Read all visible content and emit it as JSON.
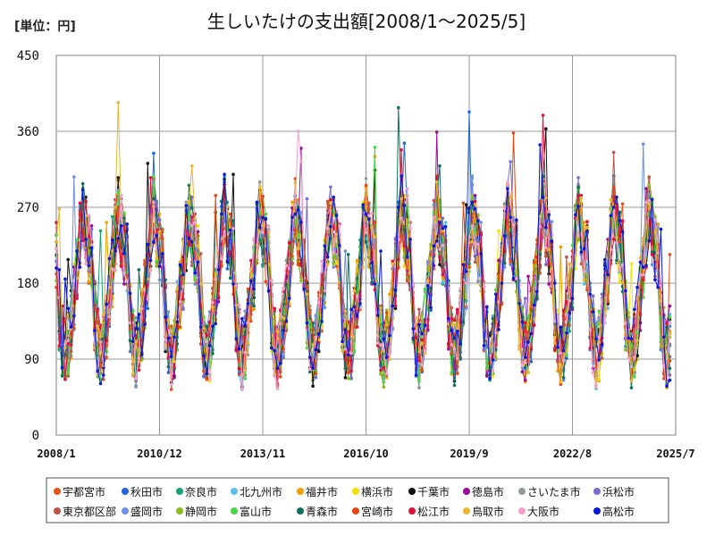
{
  "unit_label": "[単位：円]",
  "chart_data": {
    "type": "line",
    "title": "生しいたけの支出額[2008/1～2025/5]",
    "xlabel": "",
    "ylabel": "",
    "ylim": [
      0,
      450
    ],
    "yticks": [
      0,
      90,
      180,
      270,
      360,
      450
    ],
    "x_range": [
      "2008/1",
      "2025/7"
    ],
    "x_ticks": [
      "2008/1",
      "2010/12",
      "2013/11",
      "2016/10",
      "2019/9",
      "2022/8",
      "2025/7"
    ],
    "grid": true,
    "legend_position": "bottom",
    "series": [
      {
        "name": "宇都宮市",
        "color": "#e8501c",
        "seed": 11,
        "values": []
      },
      {
        "name": "秋田市",
        "color": "#1f67e0",
        "seed": 23,
        "values": []
      },
      {
        "name": "奈良市",
        "color": "#17a277",
        "seed": 37,
        "values": []
      },
      {
        "name": "北九州市",
        "color": "#55bde8",
        "seed": 41,
        "values": []
      },
      {
        "name": "福井市",
        "color": "#f0a000",
        "seed": 53,
        "values": []
      },
      {
        "name": "横浜市",
        "color": "#f5e000",
        "seed": 61,
        "values": []
      },
      {
        "name": "千葉市",
        "color": "#111111",
        "seed": 71,
        "values": []
      },
      {
        "name": "徳島市",
        "color": "#9a0a9e",
        "seed": 83,
        "values": []
      },
      {
        "name": "さいたま市",
        "color": "#909aa0",
        "seed": 97,
        "values": []
      },
      {
        "name": "浜松市",
        "color": "#7a6ad0",
        "seed": 101,
        "values": []
      },
      {
        "name": "東京都区部",
        "color": "#c0524a",
        "seed": 113,
        "values": []
      },
      {
        "name": "盛岡市",
        "color": "#6f8fe0",
        "seed": 127,
        "values": []
      },
      {
        "name": "静岡市",
        "color": "#8cbc1c",
        "seed": 131,
        "values": []
      },
      {
        "name": "富山市",
        "color": "#4ad44a",
        "seed": 149,
        "values": []
      },
      {
        "name": "青森市",
        "color": "#11705a",
        "seed": 157,
        "values": []
      },
      {
        "name": "宮崎市",
        "color": "#e04a14",
        "seed": 163,
        "values": []
      },
      {
        "name": "松江市",
        "color": "#e0103c",
        "seed": 173,
        "values": []
      },
      {
        "name": "鳥取市",
        "color": "#e8b830",
        "seed": 181,
        "values": []
      },
      {
        "name": "大阪市",
        "color": "#f5a0c8",
        "seed": 191,
        "values": []
      },
      {
        "name": "高松市",
        "color": "#0a1ad4",
        "seed": 199,
        "values": []
      }
    ]
  }
}
